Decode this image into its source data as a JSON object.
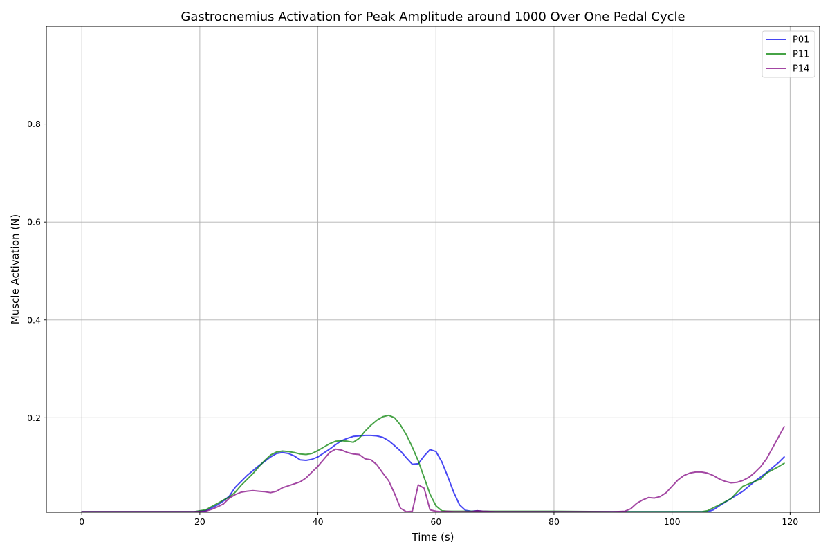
{
  "chart_data": {
    "type": "line",
    "title": "Gastrocnemius Activation for Peak Amplitude around 1000 Over One Pedal Cycle",
    "xlabel": "Time (s)",
    "ylabel": "Muscle Activation (N)",
    "xlim": [
      -6,
      125
    ],
    "ylim": [
      0.007,
      1.0
    ],
    "xticks": [
      0,
      20,
      40,
      60,
      80,
      100,
      120
    ],
    "yticks": [
      0.2,
      0.4,
      0.6,
      0.8
    ],
    "xtick_labels": [
      "0",
      "20",
      "40",
      "60",
      "80",
      "100",
      "120"
    ],
    "ytick_labels": [
      "0.2",
      "0.4",
      "0.6",
      "0.8"
    ],
    "grid": true,
    "legend_position": "top-right",
    "series": [
      {
        "name": "P01",
        "color": "#0000ee",
        "x": [
          0,
          10,
          19,
          21,
          23,
          24,
          25,
          26,
          27,
          28,
          29,
          30,
          31,
          32,
          33,
          34,
          35,
          36,
          37,
          38,
          39,
          40,
          41,
          42,
          43,
          44,
          45,
          46,
          47,
          48,
          49,
          50,
          51,
          52,
          53,
          54,
          55,
          56,
          57,
          58,
          59,
          60,
          61,
          62,
          63,
          64,
          65,
          66,
          67,
          68,
          70,
          80,
          90,
          100,
          106,
          107,
          108,
          110,
          112,
          114,
          116,
          118,
          119
        ],
        "y": [
          0.008,
          0.008,
          0.008,
          0.01,
          0.022,
          0.03,
          0.04,
          0.058,
          0.07,
          0.082,
          0.092,
          0.102,
          0.111,
          0.12,
          0.127,
          0.129,
          0.127,
          0.122,
          0.114,
          0.113,
          0.115,
          0.12,
          0.128,
          0.136,
          0.145,
          0.153,
          0.158,
          0.162,
          0.163,
          0.164,
          0.164,
          0.163,
          0.16,
          0.153,
          0.143,
          0.132,
          0.118,
          0.105,
          0.106,
          0.122,
          0.135,
          0.131,
          0.11,
          0.08,
          0.048,
          0.022,
          0.011,
          0.009,
          0.01,
          0.009,
          0.008,
          0.008,
          0.008,
          0.008,
          0.008,
          0.012,
          0.02,
          0.035,
          0.05,
          0.07,
          0.088,
          0.108,
          0.12
        ]
      },
      {
        "name": "P11",
        "color": "#008000",
        "x": [
          0,
          10,
          19,
          21,
          23,
          24,
          25,
          26,
          27,
          28,
          29,
          30,
          31,
          32,
          33,
          34,
          35,
          36,
          37,
          38,
          39,
          40,
          41,
          42,
          43,
          44,
          45,
          46,
          47,
          48,
          49,
          50,
          51,
          52,
          53,
          54,
          55,
          56,
          57,
          58,
          59,
          60,
          61,
          62,
          63,
          65,
          70,
          80,
          90,
          100,
          105,
          106,
          107,
          108,
          110,
          112,
          114,
          115,
          116,
          118,
          119
        ],
        "y": [
          0.008,
          0.008,
          0.008,
          0.012,
          0.025,
          0.032,
          0.038,
          0.048,
          0.062,
          0.074,
          0.086,
          0.1,
          0.113,
          0.124,
          0.13,
          0.132,
          0.131,
          0.129,
          0.126,
          0.125,
          0.127,
          0.133,
          0.14,
          0.147,
          0.152,
          0.153,
          0.152,
          0.15,
          0.158,
          0.173,
          0.185,
          0.195,
          0.202,
          0.205,
          0.2,
          0.185,
          0.165,
          0.14,
          0.112,
          0.078,
          0.044,
          0.02,
          0.01,
          0.009,
          0.009,
          0.009,
          0.009,
          0.009,
          0.008,
          0.008,
          0.008,
          0.01,
          0.016,
          0.022,
          0.035,
          0.06,
          0.07,
          0.075,
          0.087,
          0.1,
          0.107
        ]
      },
      {
        "name": "P14",
        "color": "#800080",
        "x": [
          0,
          10,
          19,
          21,
          22,
          23,
          24,
          25,
          26,
          27,
          28,
          29,
          30,
          31,
          32,
          33,
          34,
          35,
          36,
          37,
          38,
          39,
          40,
          41,
          42,
          43,
          44,
          45,
          46,
          47,
          48,
          49,
          50,
          51,
          52,
          53,
          54,
          55,
          56,
          57,
          58,
          59,
          60,
          61,
          62,
          63,
          66,
          67,
          68,
          70,
          80,
          90,
          92,
          93,
          94,
          95,
          96,
          97,
          98,
          99,
          100,
          101,
          102,
          103,
          104,
          105,
          106,
          107,
          108,
          109,
          110,
          111,
          112,
          113,
          114,
          115,
          116,
          117,
          118,
          119
        ],
        "y": [
          0.008,
          0.008,
          0.008,
          0.009,
          0.013,
          0.018,
          0.024,
          0.036,
          0.043,
          0.048,
          0.05,
          0.051,
          0.05,
          0.049,
          0.047,
          0.05,
          0.057,
          0.061,
          0.065,
          0.069,
          0.077,
          0.089,
          0.101,
          0.115,
          0.129,
          0.136,
          0.134,
          0.129,
          0.126,
          0.125,
          0.116,
          0.114,
          0.104,
          0.087,
          0.071,
          0.045,
          0.015,
          0.008,
          0.009,
          0.063,
          0.056,
          0.012,
          0.009,
          0.008,
          0.009,
          0.008,
          0.008,
          0.01,
          0.009,
          0.008,
          0.008,
          0.008,
          0.009,
          0.014,
          0.025,
          0.032,
          0.037,
          0.036,
          0.039,
          0.047,
          0.06,
          0.073,
          0.082,
          0.087,
          0.089,
          0.089,
          0.087,
          0.082,
          0.075,
          0.07,
          0.067,
          0.068,
          0.072,
          0.078,
          0.088,
          0.1,
          0.116,
          0.138,
          0.16,
          0.182
        ]
      }
    ]
  }
}
